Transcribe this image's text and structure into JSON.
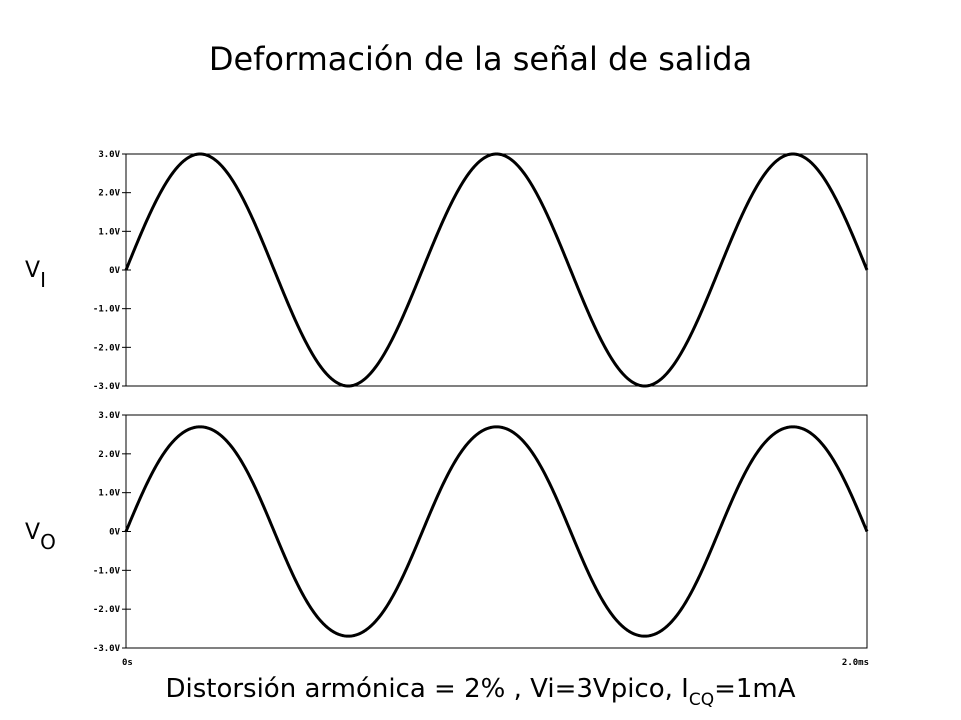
{
  "slide": {
    "title": "Deformación de la señal de salida",
    "caption_main": "Distorsión armónica = 2% , Vi=3Vpico, I",
    "caption_sub": "CQ",
    "caption_tail": "=1mA"
  },
  "chart_data": [
    {
      "type": "line",
      "side_label_main": "V",
      "side_label_sub": "I",
      "y_ticks": [
        "3.0V",
        "2.0V",
        "1.0V",
        "0V",
        "-1.0V",
        "-2.0V",
        "-3.0V"
      ],
      "y_tick_values": [
        3,
        2,
        1,
        0,
        -1,
        -2,
        -3
      ],
      "ylim": [
        -3,
        3
      ],
      "xlim": [
        0,
        2.0
      ],
      "x_unit": "ms",
      "grid": false,
      "series": [
        {
          "amplitude_v": 3.0,
          "frequency_khz": 1.0,
          "distortion": 0.0
        }
      ]
    },
    {
      "type": "line",
      "side_label_main": "V",
      "side_label_sub": "O",
      "y_ticks": [
        "3.0V",
        "2.0V",
        "1.0V",
        "0V",
        "-1.0V",
        "-2.0V",
        "-3.0V"
      ],
      "y_tick_values": [
        3,
        2,
        1,
        0,
        -1,
        -2,
        -3
      ],
      "ylim": [
        -3,
        3
      ],
      "xlim": [
        0,
        2.0
      ],
      "x_unit": "ms",
      "x_ticks": [
        "0s",
        "2.0ms"
      ],
      "x_tick_values": [
        0,
        2.0
      ],
      "grid": false,
      "series": [
        {
          "amplitude_v": 2.75,
          "frequency_khz": 1.0,
          "distortion": 0.02
        }
      ]
    }
  ]
}
